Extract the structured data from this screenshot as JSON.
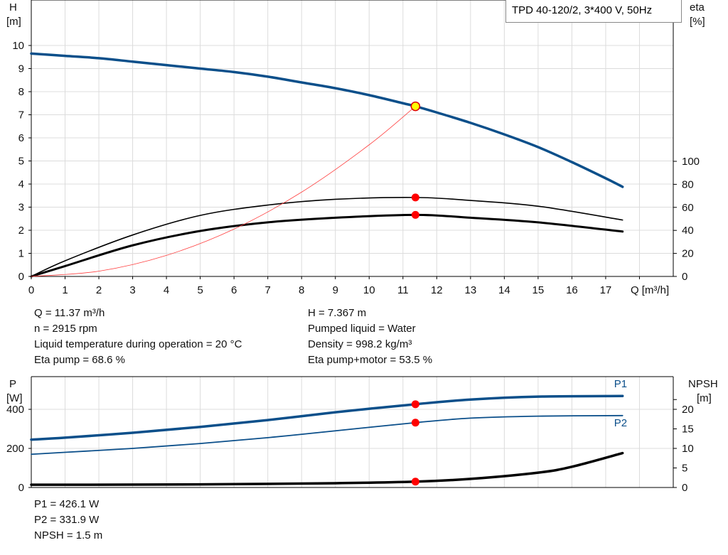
{
  "title": "TPD 40-120/2, 3*400 V, 50Hz",
  "operating_point": {
    "left": [
      "Q = 11.37 m³/h",
      "n = 2915 rpm",
      "Liquid temperature during operation = 20 °C",
      "Eta pump = 68.6 %"
    ],
    "right": [
      "H = 7.367 m",
      "Pumped liquid = Water",
      "Density = 998.2 kg/m³",
      "Eta pump+motor = 53.5 %"
    ],
    "power": [
      "P1 = 426.1 W",
      "P2 = 331.9 W",
      "NPSH = 1.5 m"
    ]
  },
  "colors": {
    "head": "#0b4f8a",
    "power": "#0b4f8a",
    "eta": "#000000",
    "npsh": "#000000",
    "system": "#ff4040",
    "point": "#ff0000",
    "point_head": "#ffff00"
  },
  "chart_data": [
    {
      "type": "line",
      "title": "",
      "xlabel": "Q [m³/h]",
      "ylabel": "H\n[m]",
      "y2label": "eta\n[%]",
      "ylabel_parts": [
        "H",
        "[m]"
      ],
      "y2label_parts": [
        "eta",
        "[%]"
      ],
      "xlim": [
        0,
        19
      ],
      "ylim": [
        0,
        12
      ],
      "y2lim": [
        0,
        100
      ],
      "xticks": [
        0,
        1,
        2,
        3,
        4,
        5,
        6,
        7,
        8,
        9,
        10,
        11,
        12,
        13,
        14,
        15,
        16,
        17
      ],
      "yticks": [
        0,
        1,
        2,
        3,
        4,
        5,
        6,
        7,
        8,
        9,
        10
      ],
      "y2ticks": [
        0,
        20,
        40,
        60,
        80,
        100
      ],
      "grid": true,
      "series": [
        {
          "key": "head",
          "axis": "y",
          "x": [
            0,
            1,
            2,
            3,
            4,
            5,
            6,
            7,
            8,
            9,
            10,
            11,
            11.37,
            12,
            13,
            14,
            15,
            16,
            17,
            17.5
          ],
          "y": [
            9.65,
            9.55,
            9.45,
            9.3,
            9.15,
            9.0,
            8.85,
            8.65,
            8.4,
            8.15,
            7.85,
            7.5,
            7.367,
            7.1,
            6.65,
            6.15,
            5.6,
            4.95,
            4.25,
            3.88
          ]
        },
        {
          "key": "eta_pump",
          "axis": "y2",
          "x": [
            0,
            1,
            3,
            5,
            7,
            9,
            11.37,
            13,
            15,
            17.5
          ],
          "y": [
            0,
            13.6,
            36,
            53,
            62,
            67,
            68.6,
            66,
            61,
            49
          ]
        },
        {
          "key": "eta_pump_motor",
          "axis": "y2",
          "x": [
            0,
            1,
            3,
            5,
            7,
            9,
            11.37,
            13,
            15,
            17.5
          ],
          "y": [
            0,
            9,
            27,
            39.5,
            47,
            51,
            53.5,
            51,
            47,
            39
          ]
        },
        {
          "key": "system",
          "axis": "y",
          "formula": "quadratic through operating point",
          "x": [
            0,
            2,
            4,
            6,
            8,
            10,
            11.37
          ],
          "y": [
            0,
            0.228,
            0.912,
            2.05,
            3.65,
            5.7,
            7.367
          ]
        }
      ],
      "points": [
        {
          "x": 11.37,
          "y": 7.367,
          "axis": "y"
        },
        {
          "x": 11.37,
          "y": 68.6,
          "axis": "y2"
        },
        {
          "x": 11.37,
          "y": 53.5,
          "axis": "y2"
        }
      ]
    },
    {
      "type": "line",
      "title": "",
      "ylabel_parts": [
        "P",
        "[W]"
      ],
      "y2label_parts": [
        "NPSH",
        "[m]"
      ],
      "xlim": [
        0,
        19
      ],
      "ylim": [
        0,
        480
      ],
      "y2lim": [
        0,
        24
      ],
      "yticks": [
        0,
        200,
        400
      ],
      "y2ticks": [
        0,
        5,
        10,
        15,
        20
      ],
      "y2minor": [
        22.5
      ],
      "grid": true,
      "series": [
        {
          "key": "P1",
          "name": "P1",
          "axis": "y",
          "x": [
            0,
            1,
            3,
            5,
            7,
            9,
            11.37,
            13,
            15,
            17.5
          ],
          "y": [
            245,
            255,
            280,
            310,
            345,
            385,
            426.1,
            450,
            465,
            468
          ]
        },
        {
          "key": "P2",
          "name": "P2",
          "axis": "y",
          "x": [
            0,
            1,
            3,
            5,
            7,
            9,
            11.37,
            13,
            15,
            17.5
          ],
          "y": [
            170,
            180,
            200,
            225,
            255,
            290,
            331.9,
            355,
            365,
            368
          ]
        },
        {
          "key": "NPSH",
          "axis": "y2",
          "x": [
            0,
            1,
            5,
            9,
            11.37,
            13,
            15,
            16,
            17.5
          ],
          "y": [
            0.7,
            0.7,
            0.8,
            1.1,
            1.5,
            2.2,
            3.8,
            5.3,
            8.8
          ]
        }
      ],
      "points": [
        {
          "x": 11.37,
          "y": 426.1,
          "axis": "y"
        },
        {
          "x": 11.37,
          "y": 331.9,
          "axis": "y"
        },
        {
          "x": 11.37,
          "y": 1.5,
          "axis": "y2"
        }
      ]
    }
  ]
}
